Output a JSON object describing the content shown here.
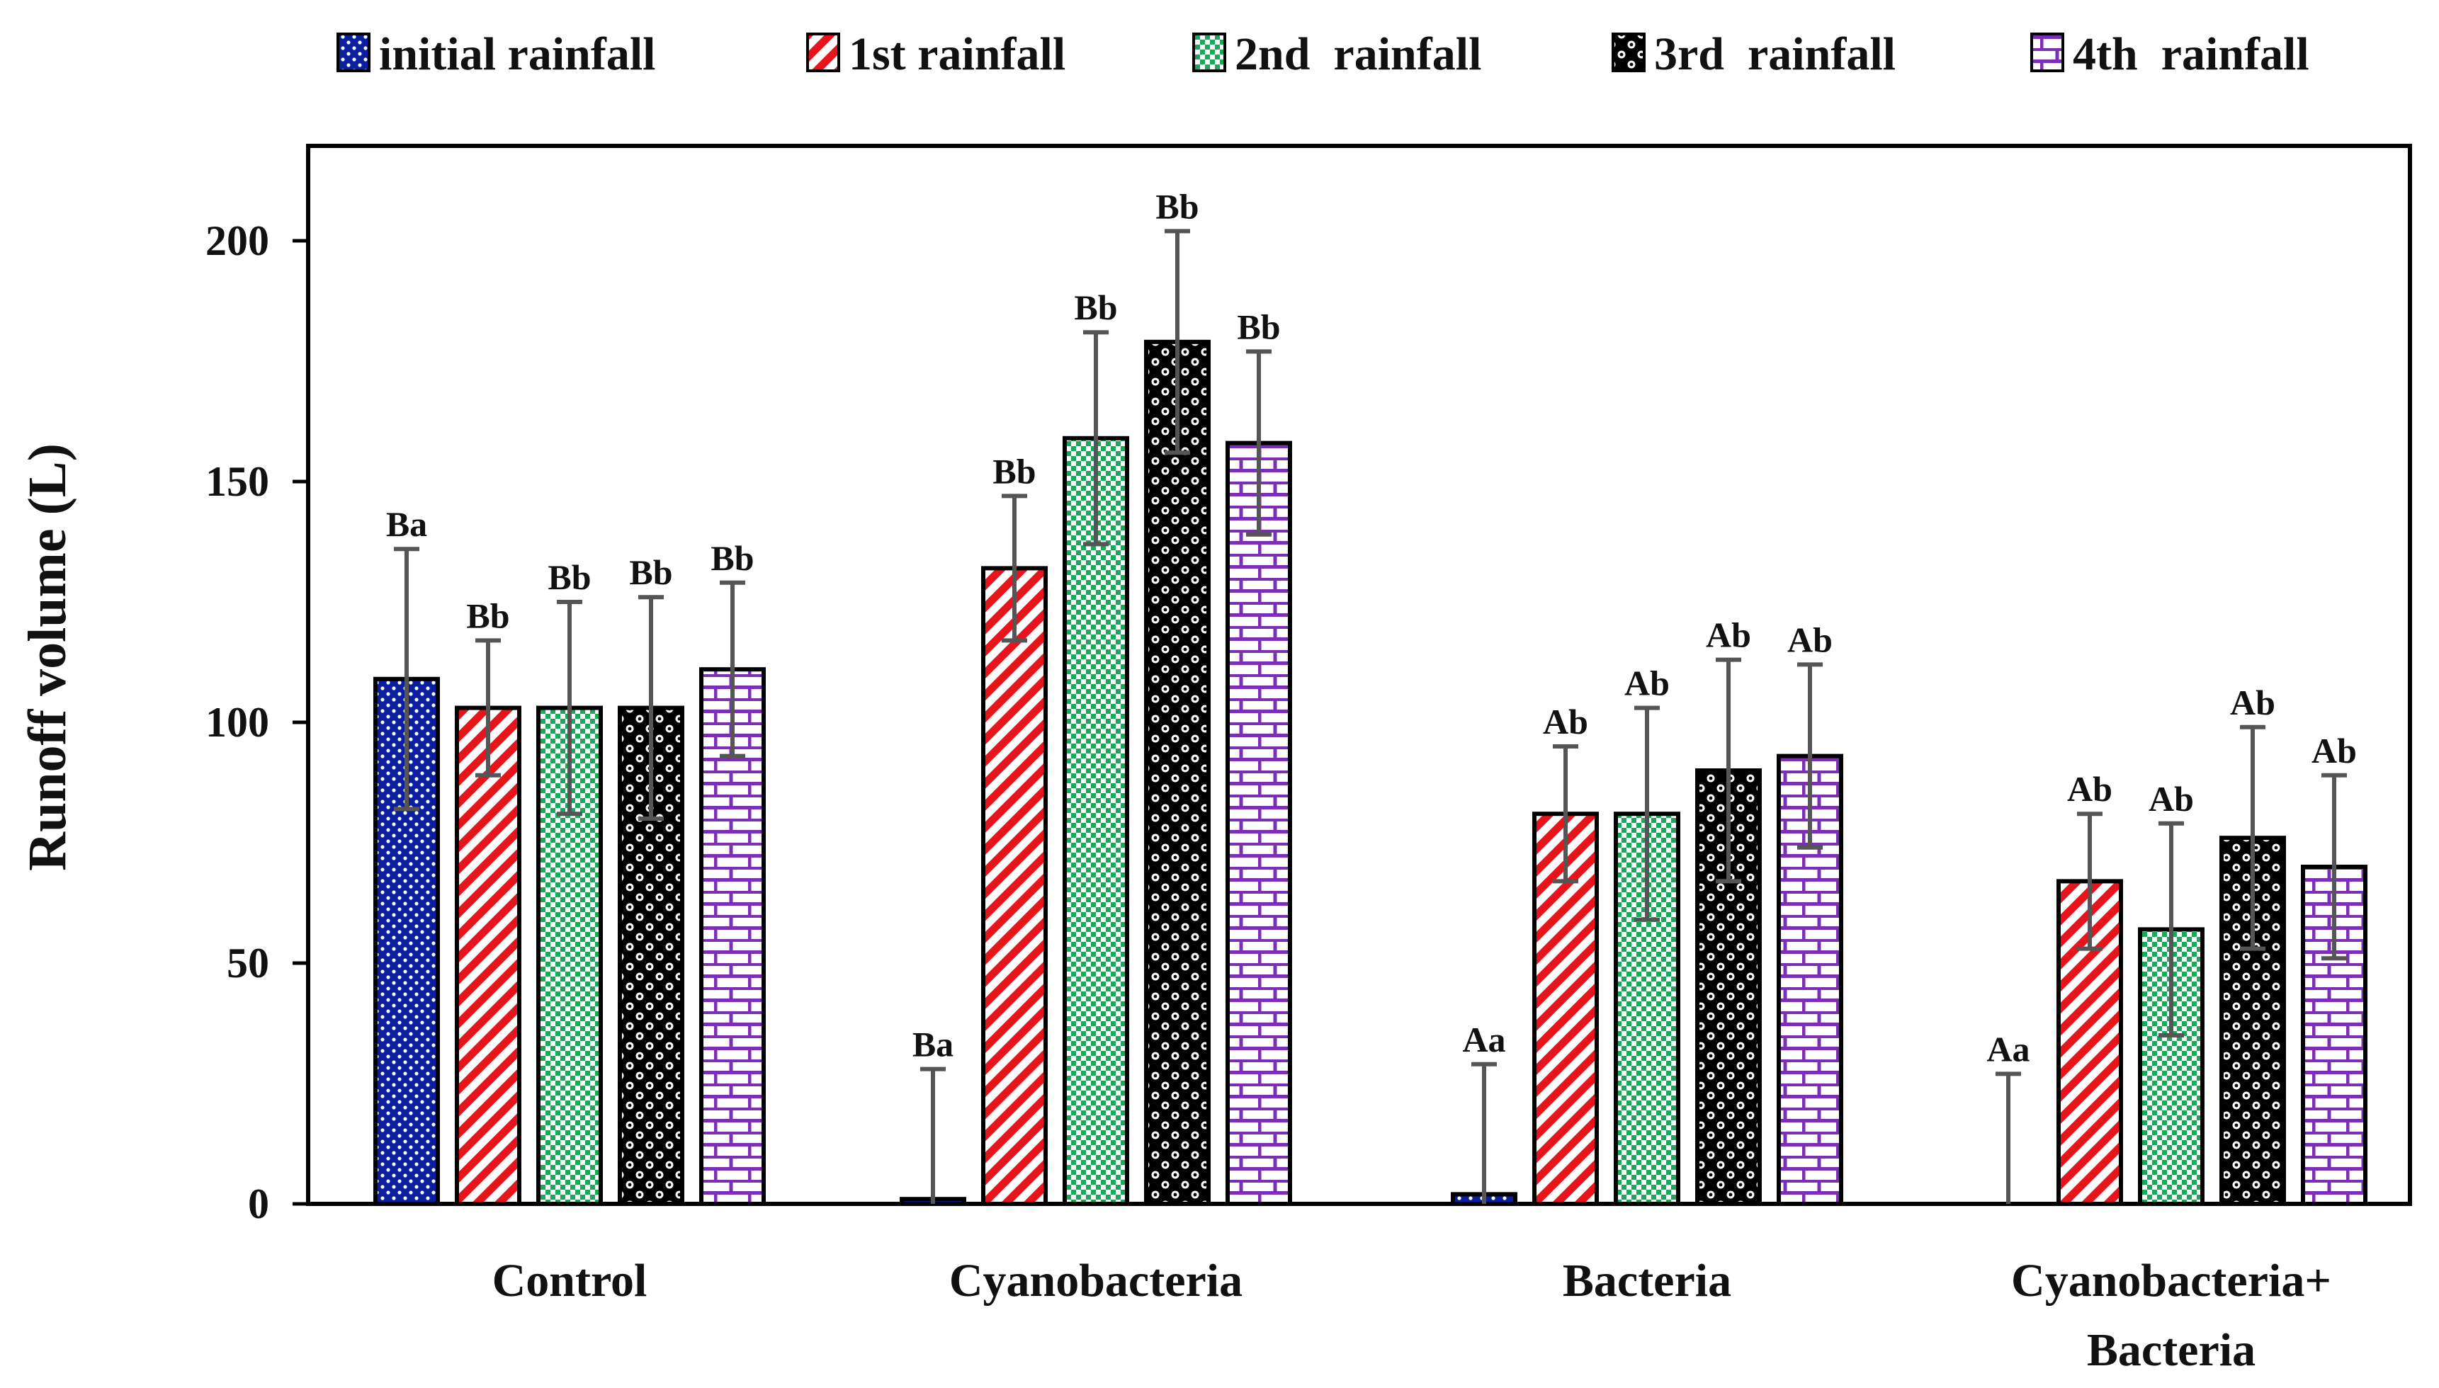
{
  "chart_data": {
    "type": "bar",
    "title": "",
    "xlabel": "",
    "ylabel": "Runoff volume (L)",
    "ylim": [
      0,
      220
    ],
    "yticks": [
      0,
      50,
      100,
      150,
      200
    ],
    "ytick_labels": [
      "0",
      "50",
      "100",
      "150",
      "200"
    ],
    "grid": false,
    "legend_position": "top",
    "categories": [
      [
        "Control"
      ],
      [
        "Cyanobacteria"
      ],
      [
        "Bacteria"
      ],
      [
        "Cyanobacteria+",
        "Bacteria"
      ]
    ],
    "series": [
      {
        "name": "initial rainfall",
        "color": "#0a1f9e",
        "pattern": "dots",
        "values": [
          109,
          1,
          2,
          0
        ],
        "errors": [
          27,
          27,
          27,
          27
        ],
        "labels": [
          "Ba",
          "Ba",
          "Aa",
          "Aa"
        ]
      },
      {
        "name": "1st rainfall",
        "color": "#e8141c",
        "pattern": "diagonal",
        "values": [
          103,
          132,
          81,
          67
        ],
        "errors": [
          14,
          15,
          14,
          14
        ],
        "labels": [
          "Bb",
          "Bb",
          "Ab",
          "Ab"
        ]
      },
      {
        "name": "2nd  rainfall",
        "color": "#1aa85a",
        "pattern": "checker",
        "values": [
          103,
          159,
          81,
          57
        ],
        "errors": [
          22,
          22,
          22,
          22
        ],
        "labels": [
          "Bb",
          "Bb",
          "Ab",
          "Ab"
        ]
      },
      {
        "name": "3rd  rainfall",
        "color": "#000000",
        "pattern": "circles",
        "values": [
          103,
          179,
          90,
          76
        ],
        "errors": [
          23,
          23,
          23,
          23
        ],
        "labels": [
          "Bb",
          "Bb",
          "Ab",
          "Ab"
        ]
      },
      {
        "name": "4th  rainfall",
        "color": "#7b2fb5",
        "pattern": "bricks",
        "values": [
          111,
          158,
          93,
          70
        ],
        "errors": [
          18,
          19,
          19,
          19
        ],
        "labels": [
          "Bb",
          "Bb",
          "Ab",
          "Ab"
        ]
      }
    ]
  }
}
